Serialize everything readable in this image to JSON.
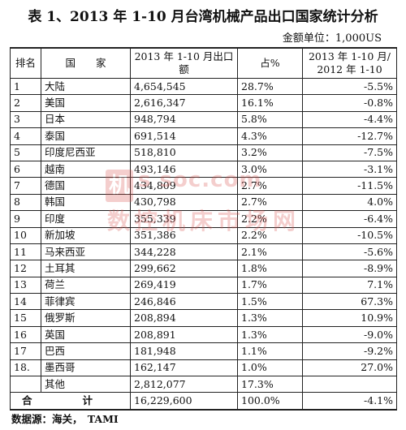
{
  "title": "表 1、2013 年 1-10 月台湾机械产品出口国家统计分析",
  "unit": "金额单位：1,000US",
  "headers": {
    "rank": "排名",
    "country": "国　　家",
    "value": "2013 年 1-10 月出口额",
    "share": "占%",
    "growth": "2013 年 1-10 月/ 2012 年 1-10"
  },
  "rows": [
    {
      "rank": "1",
      "country": "大陆",
      "value": "4,654,545",
      "share": "28.7%",
      "growth": "-5.5%"
    },
    {
      "rank": "2",
      "country": "美国",
      "value": "2,616,347",
      "share": "16.1%",
      "growth": "-0.8%"
    },
    {
      "rank": "3",
      "country": "日本",
      "value": "948,794",
      "share": "5.8%",
      "growth": "-4.4%"
    },
    {
      "rank": "4",
      "country": "泰国",
      "value": "691,514",
      "share": "4.3%",
      "growth": "-12.7%"
    },
    {
      "rank": "5",
      "country": "印度尼西亚",
      "value": "518,810",
      "share": "3.2%",
      "growth": "-7.5%"
    },
    {
      "rank": "6",
      "country": "越南",
      "value": "493,146",
      "share": "3.0%",
      "growth": "-3.1%"
    },
    {
      "rank": "7",
      "country": "德国",
      "value": "434,809",
      "share": "2.7%",
      "growth": "-11.5%"
    },
    {
      "rank": "8",
      "country": "韩国",
      "value": "430,798",
      "share": "2.7%",
      "growth": "4.0%"
    },
    {
      "rank": "9",
      "country": "印度",
      "value": "355,339",
      "share": "2.2%",
      "growth": "-6.4%"
    },
    {
      "rank": "10",
      "country": "新加坡",
      "value": "351,386",
      "share": "2.2%",
      "growth": "-10.5%"
    },
    {
      "rank": "11",
      "country": "马来西亚",
      "value": "344,228",
      "share": "2.1%",
      "growth": "-5.6%"
    },
    {
      "rank": "12",
      "country": "土耳其",
      "value": "299,662",
      "share": "1.8%",
      "growth": "-8.9%"
    },
    {
      "rank": "13",
      "country": "荷兰",
      "value": "269,419",
      "share": "1.7%",
      "growth": "7.1%"
    },
    {
      "rank": "14",
      "country": "菲律宾",
      "value": "246,846",
      "share": "1.5%",
      "growth": "67.3%"
    },
    {
      "rank": "15",
      "country": "俄罗斯",
      "value": "208,894",
      "share": "1.3%",
      "growth": "10.9%"
    },
    {
      "rank": "16",
      "country": "英国",
      "value": "208,891",
      "share": "1.3%",
      "growth": "-9.0%"
    },
    {
      "rank": "17",
      "country": "巴西",
      "value": "181,948",
      "share": "1.1%",
      "growth": "-9.2%"
    },
    {
      "rank": "18.",
      "country": "墨西哥",
      "value": "162,147",
      "share": "1.0%",
      "growth": "27.0%"
    },
    {
      "rank": "",
      "country": "其他",
      "value": "2,812,077",
      "share": "17.3%",
      "growth": ""
    }
  ],
  "total": {
    "label_1": "合",
    "label_2": "计",
    "value": "16,229,600",
    "share": "100.0%",
    "growth": "-4.1%"
  },
  "source": "数据源：海关，　TAMI",
  "watermark": {
    "logo": "机",
    "url": "s  soc.com",
    "cn": "数控机床市场网"
  }
}
